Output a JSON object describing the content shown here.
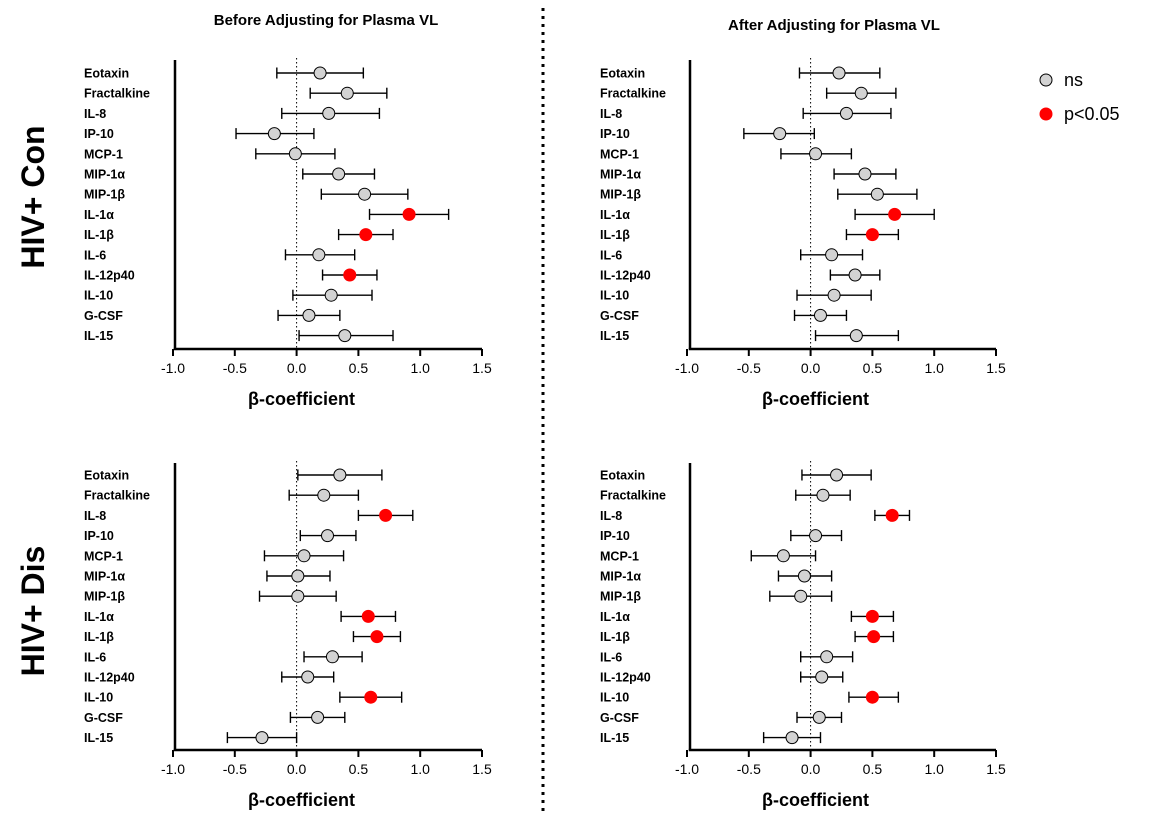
{
  "column_titles": [
    "Before Adjusting for Plasma VL",
    "After Adjusting for Plasma VL"
  ],
  "row_titles": [
    "HIV+ Con",
    "HIV+ Dis"
  ],
  "legend": {
    "entries": [
      {
        "label": "ns",
        "color": "#d3d3d3"
      },
      {
        "label": "p<0.05",
        "color": "#ff0000"
      }
    ]
  },
  "colors": {
    "ns": "#d3d3d3",
    "sig": "#ff0000",
    "axis": "#000000"
  },
  "chart_data": [
    {
      "type": "scatter",
      "row": "HIV+ Con",
      "column": "Before Adjusting for Plasma VL",
      "xlabel": "β-coefficient",
      "xlim": [
        -1.0,
        1.5
      ],
      "xticks": [
        "-1.0",
        "-0.5",
        "0.0",
        "0.5",
        "1.0",
        "1.5"
      ],
      "reference_line_x": 0,
      "categories": [
        "Eotaxin",
        "Fractalkine",
        "IL-8",
        "IP-10",
        "MCP-1",
        "MIP-1α",
        "MIP-1β",
        "IL-1α",
        "IL-1β",
        "IL-6",
        "IL-12p40",
        "IL-10",
        "G-CSF",
        "IL-15"
      ],
      "estimate": [
        0.19,
        0.41,
        0.26,
        -0.18,
        -0.01,
        0.34,
        0.55,
        0.91,
        0.56,
        0.18,
        0.43,
        0.28,
        0.1,
        0.39
      ],
      "ci_low": [
        -0.16,
        0.11,
        -0.12,
        -0.49,
        -0.33,
        0.05,
        0.2,
        0.59,
        0.34,
        -0.09,
        0.21,
        -0.03,
        -0.15,
        0.02
      ],
      "ci_high": [
        0.54,
        0.73,
        0.67,
        0.14,
        0.31,
        0.63,
        0.9,
        1.23,
        0.78,
        0.47,
        0.65,
        0.61,
        0.35,
        0.78
      ],
      "significant": [
        false,
        false,
        false,
        false,
        false,
        false,
        false,
        true,
        true,
        false,
        true,
        false,
        false,
        false
      ]
    },
    {
      "type": "scatter",
      "row": "HIV+ Con",
      "column": "After Adjusting for Plasma VL",
      "xlabel": "β-coefficient",
      "xlim": [
        -1.0,
        1.5
      ],
      "xticks": [
        "-1.0",
        "-0.5",
        "0.0",
        "0.5",
        "1.0",
        "1.5"
      ],
      "reference_line_x": 0,
      "categories": [
        "Eotaxin",
        "Fractalkine",
        "IL-8",
        "IP-10",
        "MCP-1",
        "MIP-1α",
        "MIP-1β",
        "IL-1α",
        "IL-1β",
        "IL-6",
        "IL-12p40",
        "IL-10",
        "G-CSF",
        "IL-15"
      ],
      "estimate": [
        0.23,
        0.41,
        0.29,
        -0.25,
        0.04,
        0.44,
        0.54,
        0.68,
        0.5,
        0.17,
        0.36,
        0.19,
        0.08,
        0.37
      ],
      "ci_low": [
        -0.09,
        0.13,
        -0.06,
        -0.54,
        -0.24,
        0.19,
        0.22,
        0.36,
        0.29,
        -0.08,
        0.16,
        -0.11,
        -0.13,
        0.04
      ],
      "ci_high": [
        0.56,
        0.69,
        0.65,
        0.03,
        0.33,
        0.69,
        0.86,
        1.0,
        0.71,
        0.42,
        0.56,
        0.49,
        0.29,
        0.71
      ],
      "significant": [
        false,
        false,
        false,
        false,
        false,
        false,
        false,
        true,
        true,
        false,
        false,
        false,
        false,
        false
      ]
    },
    {
      "type": "scatter",
      "row": "HIV+ Dis",
      "column": "Before Adjusting for Plasma VL",
      "xlabel": "β-coefficient",
      "xlim": [
        -1.0,
        1.5
      ],
      "xticks": [
        "-1.0",
        "-0.5",
        "0.0",
        "0.5",
        "1.0",
        "1.5"
      ],
      "reference_line_x": 0,
      "categories": [
        "Eotaxin",
        "Fractalkine",
        "IL-8",
        "IP-10",
        "MCP-1",
        "MIP-1α",
        "MIP-1β",
        "IL-1α",
        "IL-1β",
        "IL-6",
        "IL-12p40",
        "IL-10",
        "G-CSF",
        "IL-15"
      ],
      "estimate": [
        0.35,
        0.22,
        0.72,
        0.25,
        0.06,
        0.01,
        0.01,
        0.58,
        0.65,
        0.29,
        0.09,
        0.6,
        0.17,
        -0.28
      ],
      "ci_low": [
        0.01,
        -0.06,
        0.5,
        0.03,
        -0.26,
        -0.24,
        -0.3,
        0.36,
        0.46,
        0.06,
        -0.12,
        0.35,
        -0.05,
        -0.56
      ],
      "ci_high": [
        0.69,
        0.5,
        0.94,
        0.48,
        0.38,
        0.27,
        0.32,
        0.8,
        0.84,
        0.53,
        0.3,
        0.85,
        0.39,
        0.0
      ],
      "significant": [
        false,
        false,
        true,
        false,
        false,
        false,
        false,
        true,
        true,
        false,
        false,
        true,
        false,
        false
      ]
    },
    {
      "type": "scatter",
      "row": "HIV+ Dis",
      "column": "After Adjusting for Plasma VL",
      "xlabel": "β-coefficient",
      "xlim": [
        -1.0,
        1.5
      ],
      "xticks": [
        "-1.0",
        "-0.5",
        "0.0",
        "0.5",
        "1.0",
        "1.5"
      ],
      "reference_line_x": 0,
      "categories": [
        "Eotaxin",
        "Fractalkine",
        "IL-8",
        "IP-10",
        "MCP-1",
        "MIP-1α",
        "MIP-1β",
        "IL-1α",
        "IL-1β",
        "IL-6",
        "IL-12p40",
        "IL-10",
        "G-CSF",
        "IL-15"
      ],
      "estimate": [
        0.21,
        0.1,
        0.66,
        0.04,
        -0.22,
        -0.05,
        -0.08,
        0.5,
        0.51,
        0.13,
        0.09,
        0.5,
        0.07,
        -0.15
      ],
      "ci_low": [
        -0.07,
        -0.12,
        0.52,
        -0.16,
        -0.48,
        -0.26,
        -0.33,
        0.33,
        0.36,
        -0.08,
        -0.08,
        0.31,
        -0.11,
        -0.38
      ],
      "ci_high": [
        0.49,
        0.32,
        0.8,
        0.25,
        0.04,
        0.17,
        0.17,
        0.67,
        0.67,
        0.34,
        0.26,
        0.71,
        0.25,
        0.08
      ],
      "significant": [
        false,
        false,
        true,
        false,
        false,
        false,
        false,
        true,
        true,
        false,
        false,
        true,
        false,
        false
      ]
    }
  ]
}
